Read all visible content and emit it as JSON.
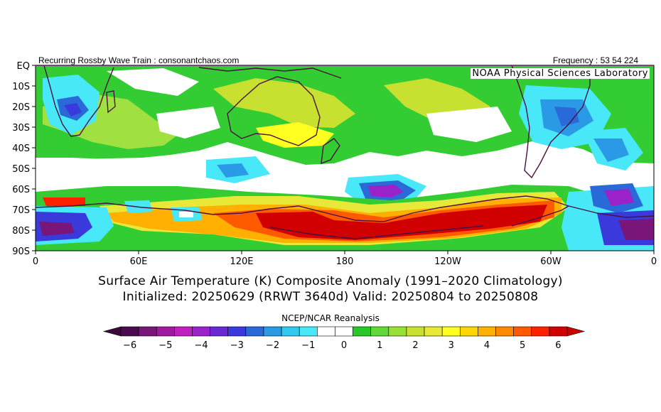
{
  "header": {
    "left": "Recurring Rossby Wave Train : consonantchaos.com",
    "right": "Frequency : 53 54 224",
    "lab": "NOAA Physical Sciences Laboratory"
  },
  "title": {
    "line1": "Surface Air Temperature (K) Composite Anomaly (1991–2020 Climatology)",
    "line2": "Initialized: 20250629 (RRWT 3640d) Valid: 20250804 to 20250808"
  },
  "source": "NCEP/NCAR Reanalysis",
  "map": {
    "lat_labels": [
      "EQ",
      "10S",
      "20S",
      "30S",
      "40S",
      "50S",
      "60S",
      "70S",
      "80S",
      "90S"
    ],
    "lon_labels": [
      "0",
      "60E",
      "120E",
      "180",
      "120W",
      "60W",
      "0"
    ]
  },
  "colorbar": {
    "tick_labels": [
      "−6",
      "−5",
      "−4",
      "−3",
      "−2",
      "−1",
      "0",
      "1",
      "2",
      "3",
      "4",
      "5",
      "6"
    ],
    "colors": [
      "#4a0b4e",
      "#7a157a",
      "#a01aa0",
      "#c020c0",
      "#9a22c8",
      "#6a28d0",
      "#3a3adc",
      "#2a6ad8",
      "#2a9ae6",
      "#30c8f0",
      "#48e8f8",
      "#ffffff",
      "#ffffff",
      "#28c828",
      "#60d838",
      "#98e038",
      "#c8e030",
      "#e8e838",
      "#ffff20",
      "#ffd700",
      "#ffb000",
      "#ff8a00",
      "#ff5a00",
      "#ff2000",
      "#d00000"
    ],
    "low_arrow_color": "#3a0a3a",
    "high_arrow_color": "#c80000"
  }
}
